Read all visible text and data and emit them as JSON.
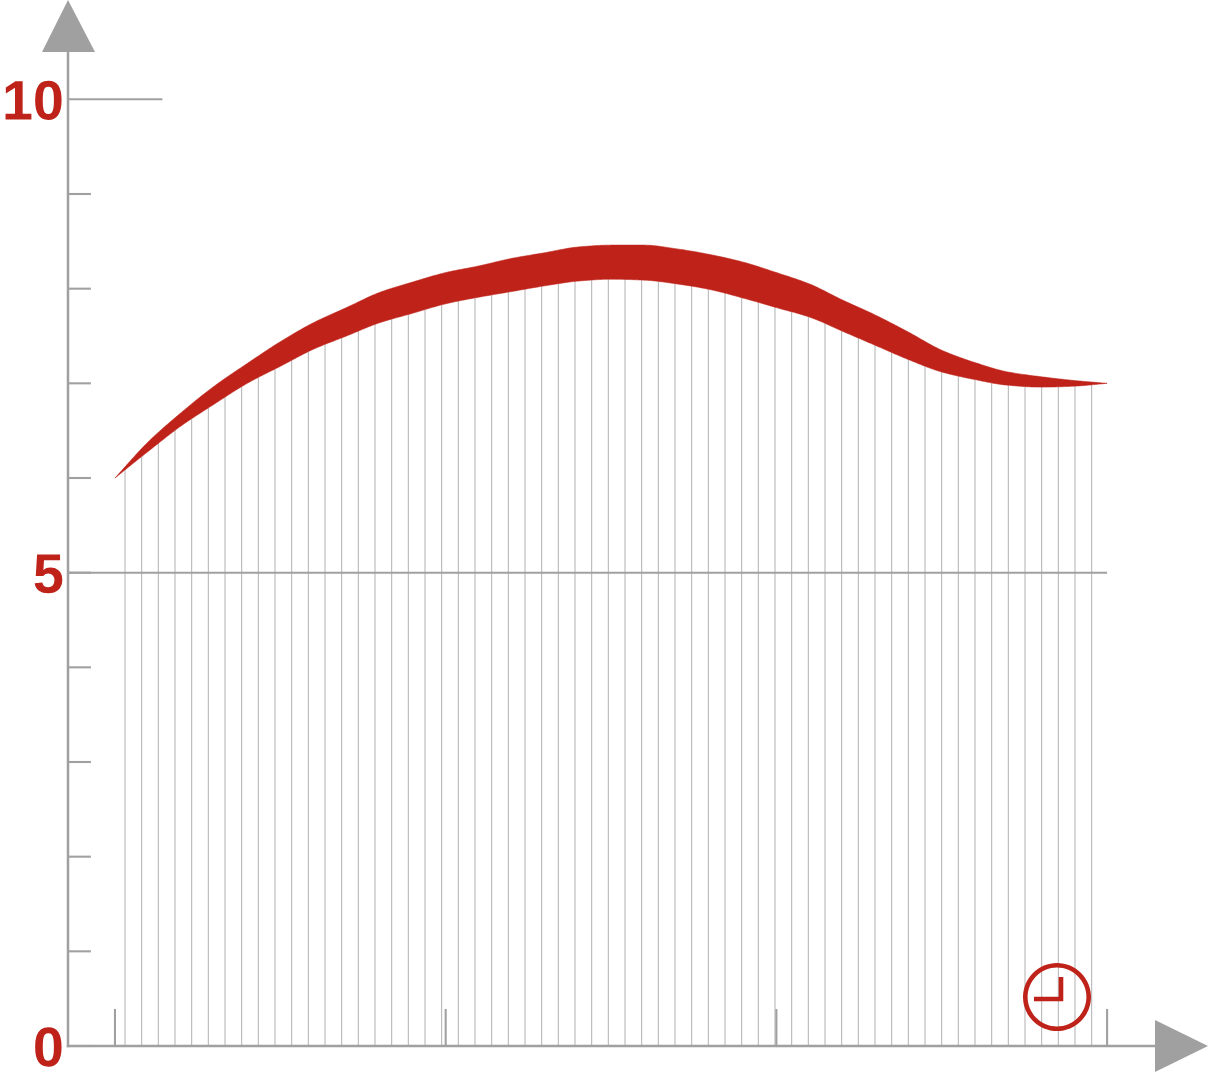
{
  "chart_data": {
    "type": "area",
    "stacked": true,
    "categories": [
      null,
      null,
      null,
      null,
      null,
      null,
      null,
      null,
      null,
      null,
      null,
      null,
      null,
      null,
      null,
      null,
      null,
      null,
      null,
      null,
      null,
      null,
      null,
      null,
      null,
      null,
      null,
      null,
      null,
      null,
      null
    ],
    "series": [
      {
        "color": "#b4b4b4",
        "values": [
          6.0,
          6.28,
          6.55,
          6.78,
          7.0,
          7.18,
          7.36,
          7.5,
          7.64,
          7.74,
          7.84,
          7.91,
          7.97,
          8.03,
          8.08,
          8.1,
          8.09,
          8.05,
          7.99,
          7.9,
          7.8,
          7.7,
          7.55,
          7.4,
          7.25,
          7.12,
          7.04,
          6.98,
          6.96,
          6.97,
          7.0
        ]
      },
      {
        "color": "#be2219",
        "values": [
          0,
          0.1,
          0.14,
          0.19,
          0.21,
          0.26,
          0.28,
          0.3,
          0.32,
          0.33,
          0.33,
          0.33,
          0.35,
          0.35,
          0.36,
          0.36,
          0.37,
          0.37,
          0.37,
          0.38,
          0.37,
          0.35,
          0.33,
          0.32,
          0.29,
          0.23,
          0.18,
          0.14,
          0.11,
          0.06,
          0
        ]
      }
    ],
    "ylim": [
      0,
      10.5
    ],
    "yticks": [
      0,
      5,
      10
    ],
    "ref_lines": [
      {
        "axis": "y",
        "value": 5,
        "color": "#a0a0a0"
      }
    ],
    "tick_labels": "y"
  }
}
